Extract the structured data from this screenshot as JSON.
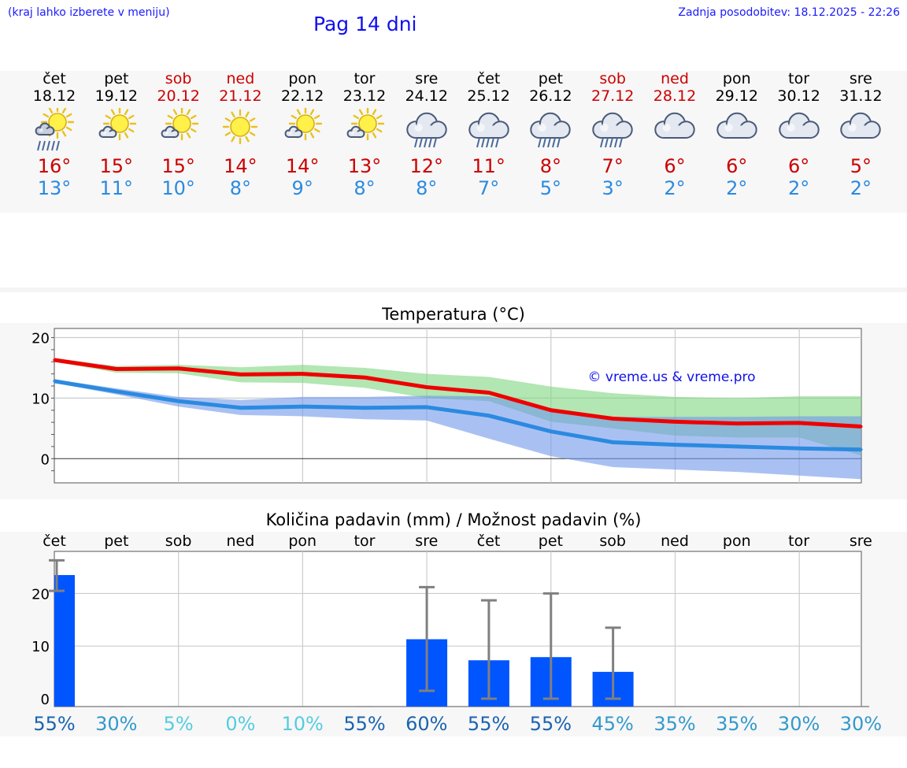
{
  "header": {
    "hint": "(kraj lahko izberete v meniju)",
    "title": "Pag 14 dni",
    "updated": "Zadnja posodobitev: 18.12.2025 - 22:26"
  },
  "days": [
    {
      "name": "čet",
      "date": "18.12",
      "icon": "sun-cloud-rain-icon",
      "max": "16°",
      "min": "13°",
      "weekend": false
    },
    {
      "name": "pet",
      "date": "19.12",
      "icon": "sun-cloud-icon",
      "max": "15°",
      "min": "11°",
      "weekend": false
    },
    {
      "name": "sob",
      "date": "20.12",
      "icon": "sun-cloud-icon",
      "max": "15°",
      "min": "10°",
      "weekend": true
    },
    {
      "name": "ned",
      "date": "21.12",
      "icon": "sun-icon",
      "max": "14°",
      "min": "8°",
      "weekend": true
    },
    {
      "name": "pon",
      "date": "22.12",
      "icon": "sun-cloud-icon",
      "max": "14°",
      "min": "9°",
      "weekend": false
    },
    {
      "name": "tor",
      "date": "23.12",
      "icon": "sun-cloud-icon",
      "max": "13°",
      "min": "8°",
      "weekend": false
    },
    {
      "name": "sre",
      "date": "24.12",
      "icon": "cloud-rain-icon",
      "max": "12°",
      "min": "8°",
      "weekend": false
    },
    {
      "name": "čet",
      "date": "25.12",
      "icon": "cloud-rain-icon",
      "max": "11°",
      "min": "7°",
      "weekend": false
    },
    {
      "name": "pet",
      "date": "26.12",
      "icon": "cloud-rain-icon",
      "max": "8°",
      "min": "5°",
      "weekend": false
    },
    {
      "name": "sob",
      "date": "27.12",
      "icon": "cloud-rain-icon",
      "max": "7°",
      "min": "3°",
      "weekend": true
    },
    {
      "name": "ned",
      "date": "28.12",
      "icon": "cloud-icon",
      "max": "6°",
      "min": "2°",
      "weekend": true
    },
    {
      "name": "pon",
      "date": "29.12",
      "icon": "cloud-icon",
      "max": "6°",
      "min": "2°",
      "weekend": false
    },
    {
      "name": "tor",
      "date": "30.12",
      "icon": "cloud-icon",
      "max": "6°",
      "min": "2°",
      "weekend": false
    },
    {
      "name": "sre",
      "date": "31.12",
      "icon": "cloud-icon",
      "max": "5°",
      "min": "2°",
      "weekend": false
    }
  ],
  "colors": {
    "max_line": "#ee0000",
    "min_line": "#2b8ae0",
    "max_band": "#7ed67e",
    "min_band": "#6f98ea",
    "bar": "#0055ff",
    "error": "#808080",
    "pct_dark": "#1a63b0",
    "pct_mid": "#3399cc",
    "pct_light": "#55cce0"
  },
  "chart_data": [
    {
      "type": "line",
      "title": "Temperatura (°C)",
      "watermark": "© vreme.us & vreme.pro",
      "x": [
        "18.12",
        "19.12",
        "20.12",
        "21.12",
        "22.12",
        "23.12",
        "24.12",
        "25.12",
        "26.12",
        "27.12",
        "28.12",
        "29.12",
        "30.12",
        "31.12"
      ],
      "ylim": [
        -4,
        21.5
      ],
      "yticks": [
        0,
        10,
        20
      ],
      "series": [
        {
          "name": "max",
          "values": [
            16.3,
            14.8,
            14.9,
            13.9,
            14.0,
            13.4,
            11.8,
            10.9,
            8.0,
            6.6,
            6.1,
            5.8,
            5.9,
            5.3
          ],
          "band_low": [
            16.0,
            14.2,
            14.1,
            12.6,
            12.5,
            11.7,
            10.0,
            9.5,
            6.1,
            5.0,
            3.8,
            3.5,
            3.5,
            0.5
          ],
          "band_high": [
            16.6,
            15.3,
            15.5,
            15.1,
            15.5,
            15.0,
            14.0,
            13.5,
            11.9,
            10.8,
            10.2,
            10.0,
            10.3,
            10.3
          ]
        },
        {
          "name": "min",
          "values": [
            12.8,
            11.1,
            9.5,
            8.4,
            8.6,
            8.4,
            8.5,
            7.1,
            4.5,
            2.7,
            2.3,
            2.0,
            1.7,
            1.5
          ],
          "band_low": [
            12.5,
            10.6,
            8.6,
            7.2,
            7.0,
            6.5,
            6.3,
            3.3,
            0.4,
            -1.4,
            -1.8,
            -2.2,
            -2.8,
            -3.4
          ],
          "band_high": [
            13.1,
            11.6,
            10.2,
            9.7,
            10.2,
            10.2,
            10.4,
            10.3,
            8.2,
            6.9,
            6.9,
            6.9,
            7.0,
            7.0
          ]
        }
      ]
    },
    {
      "type": "bar",
      "title": "Količina padavin (mm) / Možnost padavin (%)",
      "categories": [
        "čet",
        "pet",
        "sob",
        "ned",
        "pon",
        "tor",
        "sre",
        "čet",
        "pet",
        "sob",
        "ned",
        "pon",
        "tor",
        "sre"
      ],
      "ylim": [
        -1.5,
        28
      ],
      "yticks": [
        0,
        10,
        20
      ],
      "values": [
        23.5,
        0,
        0,
        0,
        0,
        0,
        11.3,
        7.3,
        7.9,
        5.1,
        0,
        0,
        0,
        0
      ],
      "error_low": [
        20.5,
        0,
        0,
        0,
        0,
        0,
        1.5,
        0,
        0,
        0,
        0,
        0,
        0,
        0
      ],
      "error_high": [
        26.3,
        0,
        0,
        0,
        0,
        0,
        21.2,
        18.7,
        20.0,
        13.5,
        0,
        0,
        0,
        0
      ],
      "chance": [
        "55%",
        "30%",
        "5%",
        "0%",
        "10%",
        "55%",
        "60%",
        "55%",
        "55%",
        "45%",
        "35%",
        "35%",
        "30%",
        "30%"
      ],
      "chance_level": [
        "dark",
        "mid",
        "light",
        "light",
        "light",
        "dark",
        "dark",
        "dark",
        "dark",
        "mid",
        "mid",
        "mid",
        "mid",
        "mid"
      ]
    }
  ]
}
